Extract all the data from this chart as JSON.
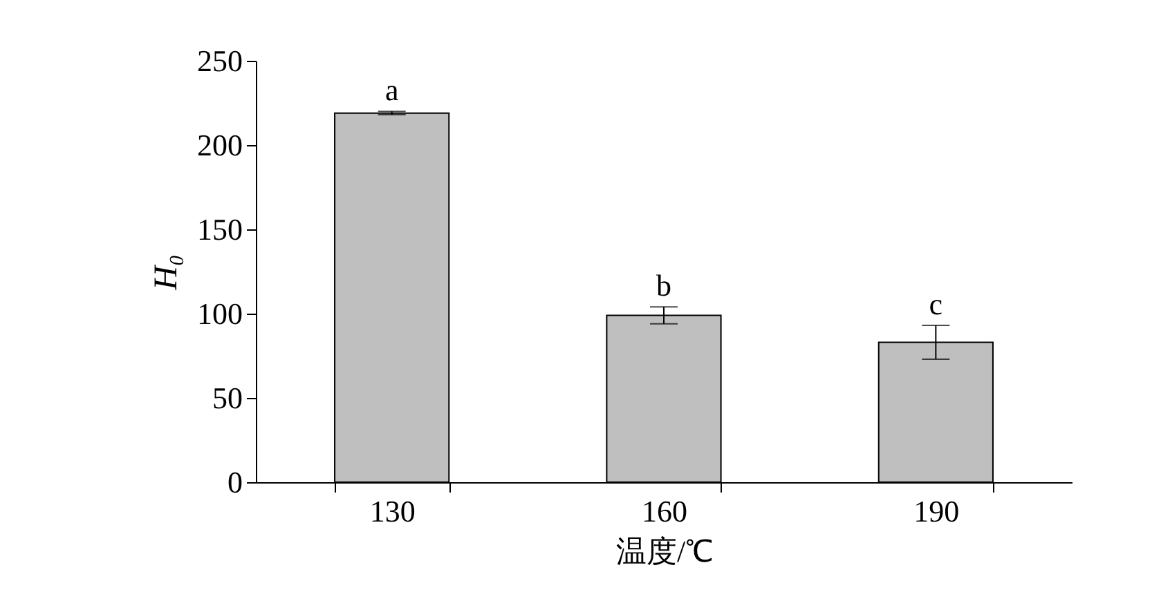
{
  "chart_data": {
    "type": "bar",
    "xlabel": "温度/℃",
    "ylabel": "H₀",
    "categories": [
      "130",
      "160",
      "190"
    ],
    "values": [
      219,
      99,
      83
    ],
    "errors": [
      1,
      5,
      10
    ],
    "color": "#bfbfbf",
    "ylim": [
      0,
      250
    ],
    "yticks": [
      0,
      50,
      100,
      150,
      200,
      250
    ],
    "grid": false,
    "annotations": [
      {
        "text": "a",
        "x": "130",
        "y": 220
      },
      {
        "text": "b",
        "x": "160",
        "y": 104
      },
      {
        "text": "c",
        "x": "190",
        "y": 93
      }
    ]
  }
}
